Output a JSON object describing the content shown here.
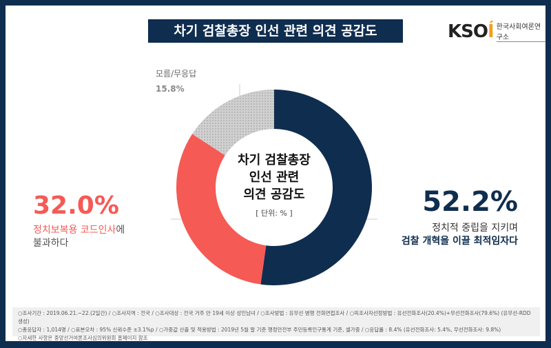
{
  "title": "차기 검찰총장 인선 관련 의견 공감도",
  "logo": {
    "mark": "KSOI",
    "text": "한국사회여론연구소"
  },
  "chart_data": {
    "type": "pie",
    "title": "차기 검찰총장 인선 관련 의견 공감도",
    "unit": "[ 단위: % ]",
    "center_lines": [
      "차기 검찰총장",
      "인선 관련",
      "의견 공감도"
    ],
    "slices": [
      {
        "label": "정치적 중립을 지키며 검찰 개혁을 이끌 최적임자다",
        "value": 52.2,
        "display": "52.2%",
        "color": "#0f2d4f"
      },
      {
        "label": "정치보복용 코드인사에 불과하다",
        "value": 32.0,
        "display": "32.0%",
        "color": "#f55a55"
      },
      {
        "label": "모름/무응답",
        "value": 15.8,
        "display": "15.8%",
        "color": "#c8c8c8"
      }
    ]
  },
  "labels": {
    "pos_line1": "정치적 중립을 지키며",
    "pos_line2": "검찰 개혁을 이끌 최적임자다",
    "neg_red": "정치보복용 코드인사",
    "neg_tail": "에",
    "neg_line2": "불과하다"
  },
  "footer": [
    "○조사기간 : 2019.06.21.~22.(2일간) / ○조사지역 : 전국 / ○조사대상 : 전국 거주 만 19세 이상 성인남녀 / ○조사방법 : 유무선 병행 전화면접조사 / ○피조사자선정방법 : 유선전화조사(20.4%)+무선전화조사(79.6%) (유무선-RDD 생성)",
    "○총응답자 : 1,014명 / ○표본오차 : 95% 신뢰수준 ±3.1%p / ○가중값 산출 및 적용방법 : 2019년 5월 말 기준 행정안전부 주민등록인구통계 기준, 셀가중 / ○응답률 : 8.4% (유선전화조사: 5.4%, 무선전화조사: 9.8%)",
    "○자세한 사항은 중앙선거여론조사심의위원회 홈페이지 참조"
  ]
}
